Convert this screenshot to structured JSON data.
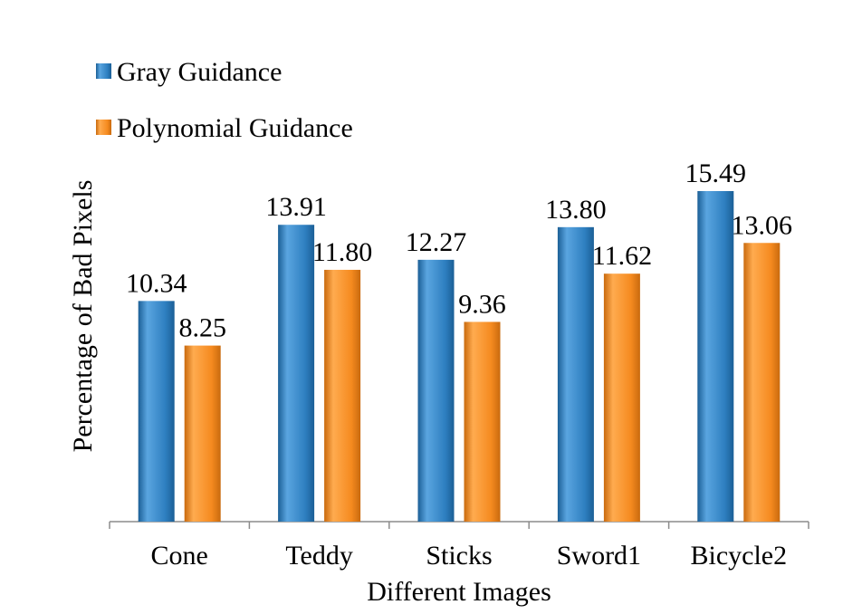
{
  "chart_data": {
    "type": "bar",
    "categories": [
      "Cone",
      "Teddy",
      "Sticks",
      "Sword1",
      "Bicycle2"
    ],
    "series": [
      {
        "name": "Gray Guidance",
        "values": [
          10.34,
          13.91,
          12.27,
          13.8,
          15.49
        ],
        "value_labels": [
          "10.34",
          "13.91",
          "12.27",
          "13.80",
          "15.49"
        ],
        "color": "#2e7fc0",
        "color_dark": "#1b5f96",
        "color_light": "#5aa5e0"
      },
      {
        "name": "Polynomial Guidance",
        "values": [
          8.25,
          11.8,
          9.36,
          11.62,
          13.06
        ],
        "value_labels": [
          "8.25",
          "11.80",
          "9.36",
          "11.62",
          "13.06"
        ],
        "color": "#f58a1f",
        "color_dark": "#c96a0e",
        "color_light": "#ffab4f"
      }
    ],
    "title": "",
    "xlabel": "Different Images",
    "ylabel": "Percentage of Bad Pixels",
    "ylim": [
      0,
      17
    ],
    "grid": false,
    "legend_position": "top-left"
  }
}
